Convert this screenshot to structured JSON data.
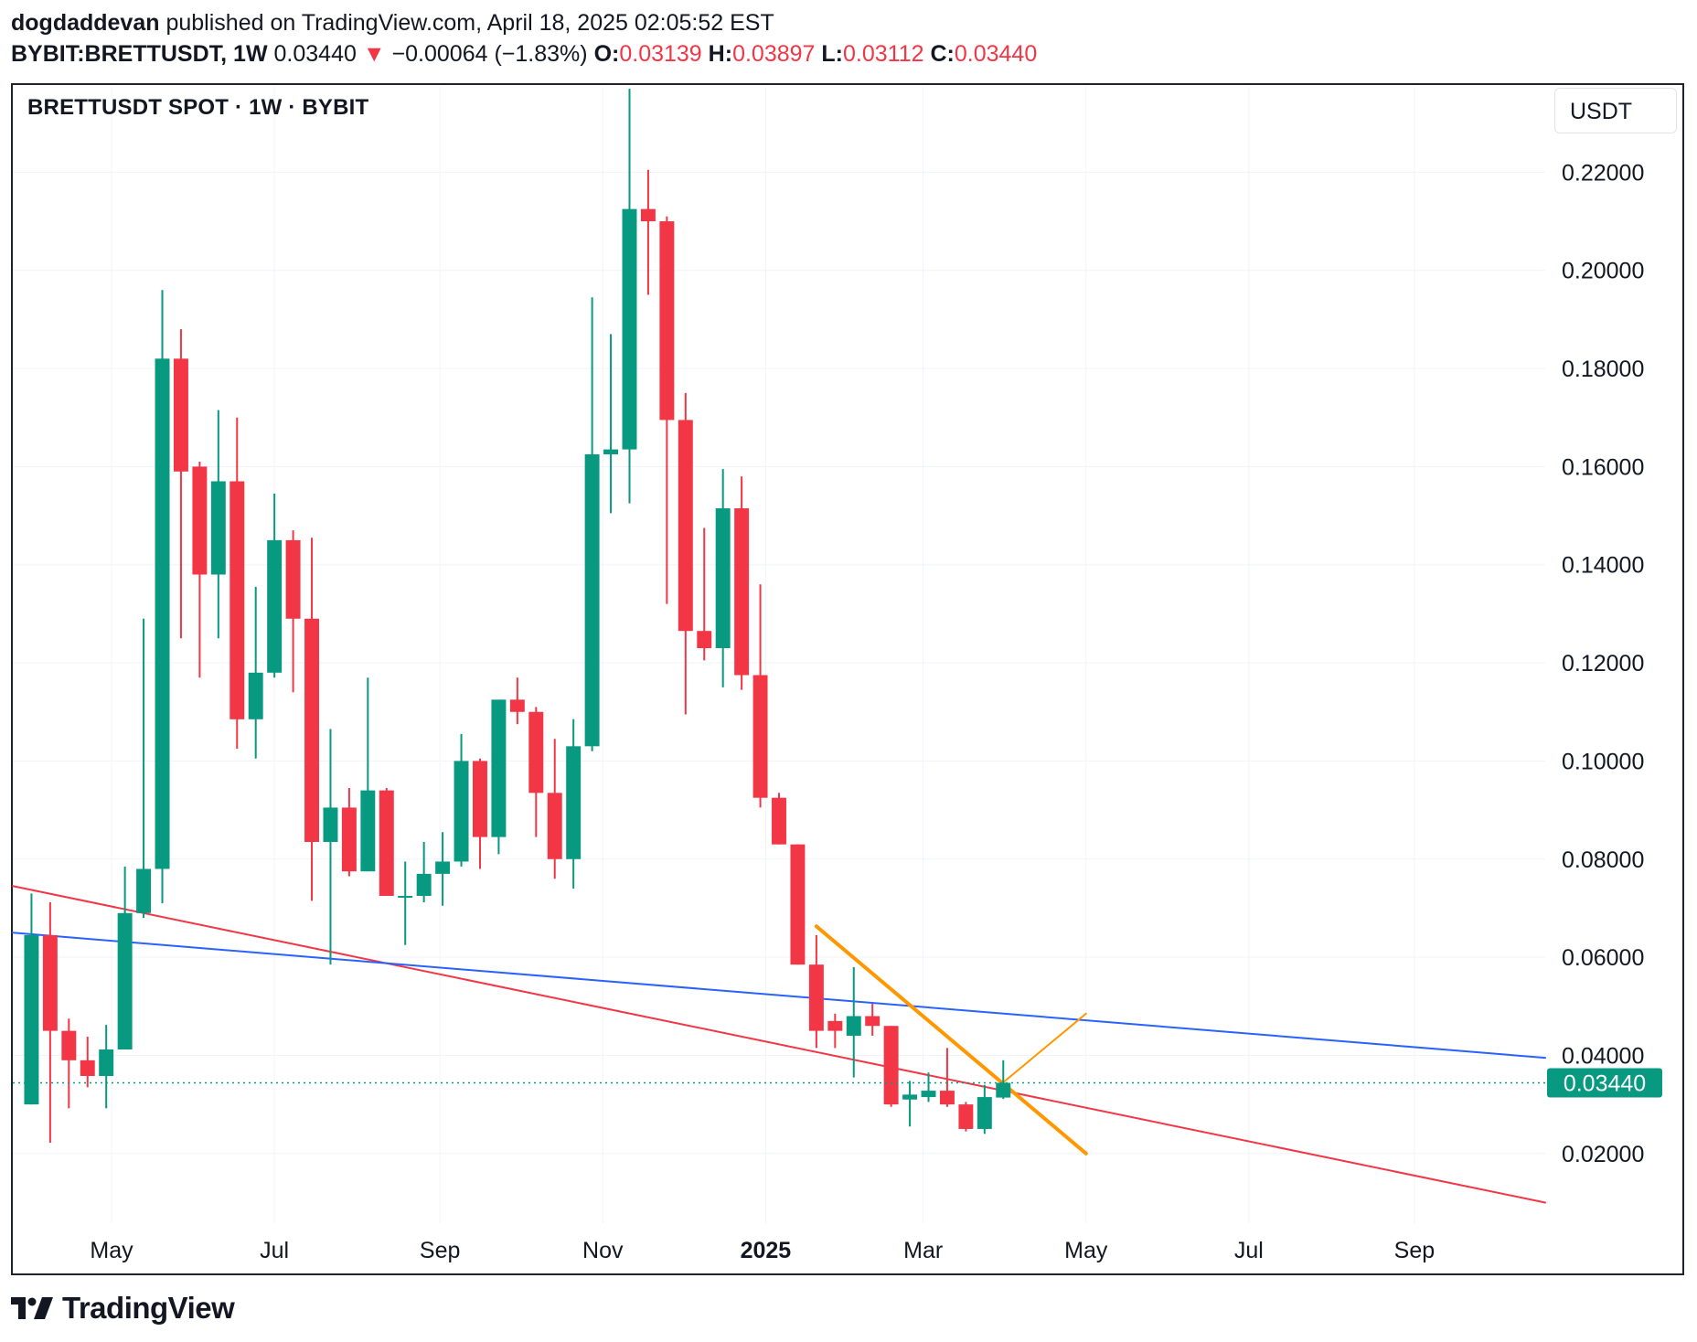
{
  "header": {
    "author": "dogdaddevan",
    "published": "published on TradingView.com, April 18, 2025 02:05:52 EST",
    "symbol": "BYBIT:BRETTUSDT, 1W",
    "last": "0.03440",
    "arrow": "▼",
    "change": "−0.00064 (−1.83%)",
    "o_label": "O:",
    "o_value": "0.03139",
    "h_label": "H:",
    "h_value": "0.03897",
    "l_label": "L:",
    "l_value": "0.03112",
    "c_label": "C:",
    "c_value": "0.03440"
  },
  "chart_title": "BRETTUSDT SPOT · 1W · BYBIT",
  "unit": "USDT",
  "brand": "TradingView",
  "colors": {
    "up": "#089981",
    "down": "#f23645",
    "trend_red": "#f23645",
    "trend_blue": "#2962ff",
    "orange": "#ff9800",
    "grid": "#f0f3fa",
    "axis_text": "#131722"
  },
  "chart_data": {
    "type": "candlestick",
    "symbol": "BYBIT:BRETTUSDT",
    "interval": "1W",
    "y_axis": {
      "range": [
        0.0058,
        0.2374
      ],
      "ticks": [
        "0.02000",
        "0.04000",
        "0.06000",
        "0.08000",
        "0.10000",
        "0.12000",
        "0.14000",
        "0.16000",
        "0.18000",
        "0.20000",
        "0.22000"
      ],
      "scale": "linear",
      "position": "right"
    },
    "x_axis": {
      "range": [
        "2024-03-25",
        "2025-10-20"
      ],
      "ticks": [
        {
          "label": "May",
          "date": "2024-05-01",
          "bold": false
        },
        {
          "label": "Jul",
          "date": "2024-07-01",
          "bold": false
        },
        {
          "label": "Sep",
          "date": "2024-09-01",
          "bold": false
        },
        {
          "label": "Nov",
          "date": "2024-11-01",
          "bold": false
        },
        {
          "label": "2025",
          "date": "2025-01-01",
          "bold": true
        },
        {
          "label": "Mar",
          "date": "2025-03-01",
          "bold": false
        },
        {
          "label": "May",
          "date": "2025-05-01",
          "bold": false
        },
        {
          "label": "Jul",
          "date": "2025-07-01",
          "bold": false
        },
        {
          "label": "Sep",
          "date": "2025-09-01",
          "bold": false
        }
      ]
    },
    "grid": true,
    "last_price": "0.03440",
    "candles": [
      {
        "date": "2024-04-01",
        "open": 0.03,
        "high": 0.073,
        "low": 0.03,
        "close": 0.0645
      },
      {
        "date": "2024-04-08",
        "open": 0.0645,
        "high": 0.0712,
        "low": 0.0222,
        "close": 0.045
      },
      {
        "date": "2024-04-15",
        "open": 0.045,
        "high": 0.0475,
        "low": 0.0292,
        "close": 0.039
      },
      {
        "date": "2024-04-22",
        "open": 0.039,
        "high": 0.0438,
        "low": 0.0335,
        "close": 0.0358
      },
      {
        "date": "2024-04-29",
        "open": 0.0358,
        "high": 0.0462,
        "low": 0.0292,
        "close": 0.0412
      },
      {
        "date": "2024-05-06",
        "open": 0.0412,
        "high": 0.0785,
        "low": 0.0412,
        "close": 0.069
      },
      {
        "date": "2024-05-13",
        "open": 0.069,
        "high": 0.129,
        "low": 0.068,
        "close": 0.078
      },
      {
        "date": "2024-05-20",
        "open": 0.078,
        "high": 0.196,
        "low": 0.071,
        "close": 0.182
      },
      {
        "date": "2024-05-27",
        "open": 0.182,
        "high": 0.188,
        "low": 0.125,
        "close": 0.159
      },
      {
        "date": "2024-06-03",
        "open": 0.16,
        "high": 0.161,
        "low": 0.117,
        "close": 0.138
      },
      {
        "date": "2024-06-10",
        "open": 0.138,
        "high": 0.1715,
        "low": 0.125,
        "close": 0.157
      },
      {
        "date": "2024-06-17",
        "open": 0.157,
        "high": 0.17,
        "low": 0.1025,
        "close": 0.1085
      },
      {
        "date": "2024-06-24",
        "open": 0.1085,
        "high": 0.1355,
        "low": 0.1005,
        "close": 0.118
      },
      {
        "date": "2024-07-01",
        "open": 0.118,
        "high": 0.1545,
        "low": 0.117,
        "close": 0.145
      },
      {
        "date": "2024-07-08",
        "open": 0.145,
        "high": 0.147,
        "low": 0.114,
        "close": 0.129
      },
      {
        "date": "2024-07-15",
        "open": 0.129,
        "high": 0.1455,
        "low": 0.0715,
        "close": 0.0835
      },
      {
        "date": "2024-07-22",
        "open": 0.0835,
        "high": 0.1065,
        "low": 0.0585,
        "close": 0.0905
      },
      {
        "date": "2024-07-29",
        "open": 0.0905,
        "high": 0.0945,
        "low": 0.0765,
        "close": 0.0775
      },
      {
        "date": "2024-08-05",
        "open": 0.0775,
        "high": 0.117,
        "low": 0.0775,
        "close": 0.094
      },
      {
        "date": "2024-08-12",
        "open": 0.094,
        "high": 0.0945,
        "low": 0.0725,
        "close": 0.0725
      },
      {
        "date": "2024-08-19",
        "open": 0.0725,
        "high": 0.0795,
        "low": 0.0625,
        "close": 0.0725
      },
      {
        "date": "2024-08-26",
        "open": 0.0725,
        "high": 0.0835,
        "low": 0.0712,
        "close": 0.077
      },
      {
        "date": "2024-09-02",
        "open": 0.077,
        "high": 0.0855,
        "low": 0.0705,
        "close": 0.0795
      },
      {
        "date": "2024-09-09",
        "open": 0.0795,
        "high": 0.1055,
        "low": 0.0785,
        "close": 0.1
      },
      {
        "date": "2024-09-16",
        "open": 0.1,
        "high": 0.1005,
        "low": 0.078,
        "close": 0.0845
      },
      {
        "date": "2024-09-23",
        "open": 0.0845,
        "high": 0.1125,
        "low": 0.081,
        "close": 0.1125
      },
      {
        "date": "2024-09-30",
        "open": 0.1125,
        "high": 0.117,
        "low": 0.1075,
        "close": 0.11
      },
      {
        "date": "2024-10-07",
        "open": 0.11,
        "high": 0.111,
        "low": 0.0845,
        "close": 0.0935
      },
      {
        "date": "2024-10-14",
        "open": 0.0935,
        "high": 0.1045,
        "low": 0.076,
        "close": 0.08
      },
      {
        "date": "2024-10-21",
        "open": 0.08,
        "high": 0.1085,
        "low": 0.074,
        "close": 0.103
      },
      {
        "date": "2024-10-28",
        "open": 0.103,
        "high": 0.1945,
        "low": 0.102,
        "close": 0.1625
      },
      {
        "date": "2024-11-04",
        "open": 0.1625,
        "high": 0.187,
        "low": 0.1505,
        "close": 0.1635
      },
      {
        "date": "2024-11-11",
        "open": 0.1635,
        "high": 0.237,
        "low": 0.1525,
        "close": 0.2125
      },
      {
        "date": "2024-11-18",
        "open": 0.2125,
        "high": 0.2205,
        "low": 0.195,
        "close": 0.21
      },
      {
        "date": "2024-11-25",
        "open": 0.21,
        "high": 0.211,
        "low": 0.132,
        "close": 0.1695
      },
      {
        "date": "2024-12-02",
        "open": 0.1695,
        "high": 0.175,
        "low": 0.1095,
        "close": 0.1265
      },
      {
        "date": "2024-12-09",
        "open": 0.1265,
        "high": 0.1475,
        "low": 0.1205,
        "close": 0.123
      },
      {
        "date": "2024-12-16",
        "open": 0.123,
        "high": 0.1595,
        "low": 0.115,
        "close": 0.1515
      },
      {
        "date": "2024-12-23",
        "open": 0.1515,
        "high": 0.158,
        "low": 0.1145,
        "close": 0.1175
      },
      {
        "date": "2024-12-30",
        "open": 0.1175,
        "high": 0.136,
        "low": 0.0905,
        "close": 0.0925
      },
      {
        "date": "2025-01-06",
        "open": 0.0925,
        "high": 0.0935,
        "low": 0.083,
        "close": 0.083
      },
      {
        "date": "2025-01-13",
        "open": 0.083,
        "high": 0.083,
        "low": 0.0585,
        "close": 0.0585
      },
      {
        "date": "2025-01-20",
        "open": 0.0585,
        "high": 0.0645,
        "low": 0.0415,
        "close": 0.045
      },
      {
        "date": "2025-01-27",
        "open": 0.047,
        "high": 0.0485,
        "low": 0.0415,
        "close": 0.045
      },
      {
        "date": "2025-02-03",
        "open": 0.044,
        "high": 0.058,
        "low": 0.0355,
        "close": 0.048
      },
      {
        "date": "2025-02-10",
        "open": 0.048,
        "high": 0.0505,
        "low": 0.044,
        "close": 0.046
      },
      {
        "date": "2025-02-17",
        "open": 0.046,
        "high": 0.046,
        "low": 0.0295,
        "close": 0.03
      },
      {
        "date": "2025-02-24",
        "open": 0.031,
        "high": 0.0348,
        "low": 0.0255,
        "close": 0.032
      },
      {
        "date": "2025-03-03",
        "open": 0.0315,
        "high": 0.0365,
        "low": 0.0305,
        "close": 0.0328
      },
      {
        "date": "2025-03-10",
        "open": 0.0328,
        "high": 0.0415,
        "low": 0.0295,
        "close": 0.03
      },
      {
        "date": "2025-03-17",
        "open": 0.03,
        "high": 0.0305,
        "low": 0.0245,
        "close": 0.025
      },
      {
        "date": "2025-03-24",
        "open": 0.025,
        "high": 0.034,
        "low": 0.024,
        "close": 0.0315
      },
      {
        "date": "2025-03-31",
        "open": 0.0314,
        "high": 0.039,
        "low": 0.0311,
        "close": 0.0344
      }
    ],
    "drawings": [
      {
        "kind": "trendline",
        "color": "red",
        "from": {
          "date": "2024-03-25",
          "price": 0.0745
        },
        "to": {
          "date": "2025-10-20",
          "price": 0.01
        }
      },
      {
        "kind": "trendline",
        "color": "blue",
        "from": {
          "date": "2024-03-25",
          "price": 0.065
        },
        "to": {
          "date": "2025-10-20",
          "price": 0.0395
        }
      },
      {
        "kind": "trendline",
        "color": "orange",
        "from": {
          "date": "2025-01-20",
          "price": 0.0663
        },
        "to": {
          "date": "2025-05-01",
          "price": 0.02
        }
      },
      {
        "kind": "arrow",
        "color": "orange",
        "from": {
          "date": "2025-03-31",
          "price": 0.0345
        },
        "to": {
          "date": "2025-05-01",
          "price": 0.0485
        }
      }
    ]
  }
}
